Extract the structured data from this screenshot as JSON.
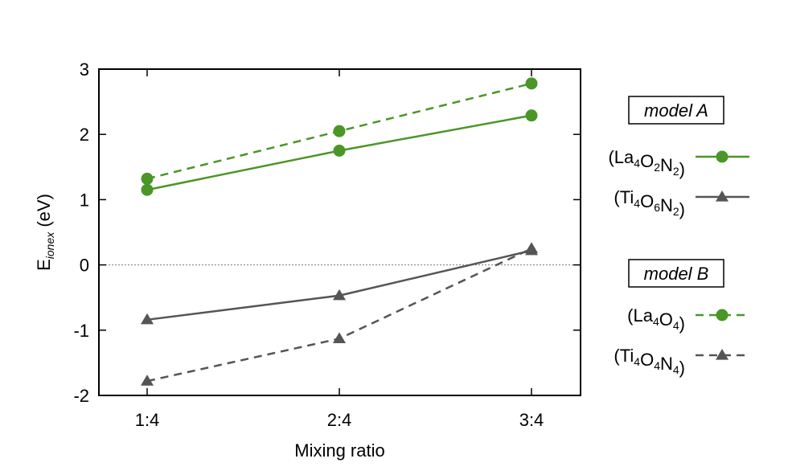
{
  "chart_data": {
    "type": "line",
    "title": "",
    "xlabel": "Mixing ratio",
    "ylabel": {
      "main": "E",
      "sub": "ionex",
      "unit": " (eV)"
    },
    "categories": [
      "1:4",
      "2:4",
      "3:4"
    ],
    "ylim": [
      -2,
      3
    ],
    "yticks": [
      3,
      2,
      1,
      0,
      -1,
      -2
    ],
    "ytick_labels": [
      "3",
      "2",
      "1",
      "0",
      "-1",
      "-2"
    ],
    "reference_line": 0,
    "colors": {
      "green": "#4a9626",
      "gray": "#555555"
    },
    "legend_groups": [
      {
        "title": "model A"
      },
      {
        "title": "model B"
      }
    ],
    "series": [
      {
        "name": "(La4O2N2)",
        "label_parts": [
          {
            "t": "(La"
          },
          {
            "t": "4",
            "sub": true
          },
          {
            "t": "O"
          },
          {
            "t": "2",
            "sub": true
          },
          {
            "t": "N"
          },
          {
            "t": "2",
            "sub": true
          },
          {
            "t": ")"
          }
        ],
        "model": "model A",
        "marker": "circle",
        "dash": "solid",
        "color": "#4a9626",
        "values": [
          1.15,
          1.75,
          2.29
        ]
      },
      {
        "name": "(Ti4O6N2)",
        "label_parts": [
          {
            "t": "(Ti"
          },
          {
            "t": "4",
            "sub": true
          },
          {
            "t": "O"
          },
          {
            "t": "6",
            "sub": true
          },
          {
            "t": "N"
          },
          {
            "t": "2",
            "sub": true
          },
          {
            "t": ")"
          }
        ],
        "model": "model A",
        "marker": "triangle",
        "dash": "solid",
        "color": "#555555",
        "values": [
          -0.84,
          -0.47,
          0.22
        ]
      },
      {
        "name": "(La4O4)",
        "label_parts": [
          {
            "t": "(La"
          },
          {
            "t": "4",
            "sub": true
          },
          {
            "t": "O"
          },
          {
            "t": "4",
            "sub": true
          },
          {
            "t": ")"
          }
        ],
        "model": "model B",
        "marker": "circle",
        "dash": "dashed",
        "color": "#4a9626",
        "values": [
          1.32,
          2.05,
          2.78
        ]
      },
      {
        "name": "(Ti4O4N4)",
        "label_parts": [
          {
            "t": "(Ti"
          },
          {
            "t": "4",
            "sub": true
          },
          {
            "t": "O"
          },
          {
            "t": "4",
            "sub": true
          },
          {
            "t": "N"
          },
          {
            "t": "4",
            "sub": true
          },
          {
            "t": ")"
          }
        ],
        "model": "model B",
        "marker": "triangle",
        "dash": "dashed",
        "color": "#555555",
        "values": [
          -1.78,
          -1.13,
          0.25
        ]
      }
    ]
  }
}
